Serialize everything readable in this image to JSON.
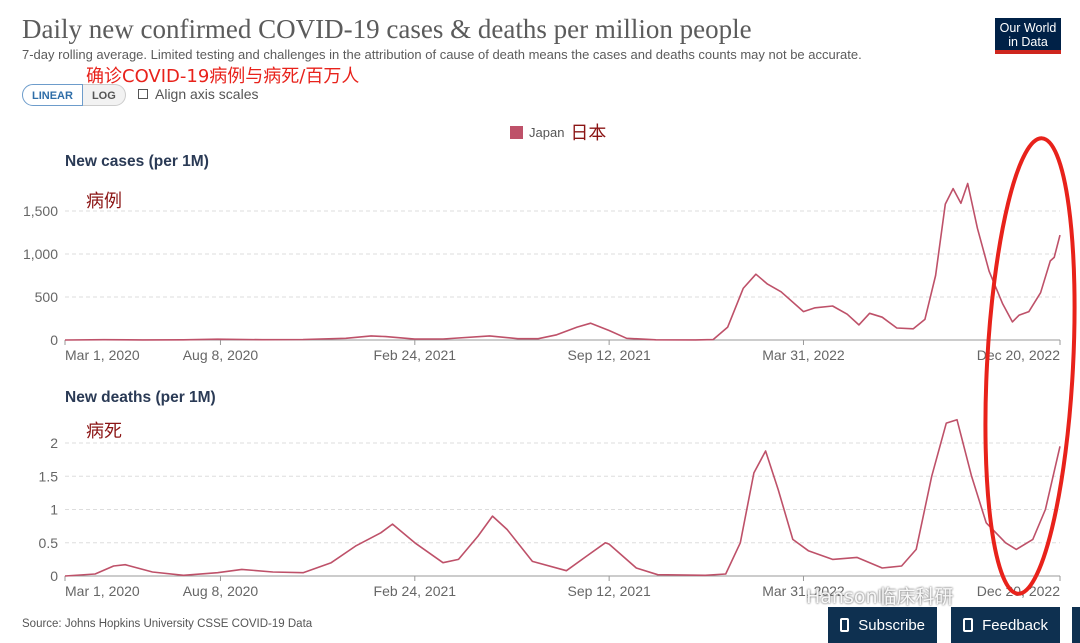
{
  "header": {
    "title": "Daily new confirmed COVID-19 cases & deaths per million people",
    "subtitle": "7-day rolling average. Limited testing and challenges in the attribution of cause of death means the cases and deaths counts may not be accurate.",
    "logo_line1": "Our World",
    "logo_line2": "in Data"
  },
  "annotations": {
    "title_cn": "确诊COVID-19病例与病死/百万人",
    "legend_cn": "日本",
    "cases_cn": "病例",
    "deaths_cn": "病死"
  },
  "controls": {
    "linear_label": "LINEAR",
    "log_label": "LOG",
    "align_label": "Align axis scales"
  },
  "legend": {
    "name": "Japan",
    "color": "#be5169"
  },
  "source": "Source: Johns Hopkins University CSSE COVID-19 Data",
  "buttons": {
    "subscribe": "Subscribe",
    "feedback": "Feedback"
  },
  "watermark": "Hanson临床科研",
  "highlight_color": "#e8221b",
  "chart_data": [
    {
      "type": "line",
      "title": "New cases (per 1M)",
      "x_type": "date",
      "xlim": [
        "2020-03-01",
        "2022-12-20"
      ],
      "ylim": [
        0,
        1800
      ],
      "y_ticks": [
        0,
        500,
        1000,
        1500
      ],
      "y_tick_labels": [
        "0",
        "500",
        "1,000",
        "1,500"
      ],
      "x_ticks": [
        "2020-03-01",
        "2020-08-08",
        "2021-02-24",
        "2021-09-12",
        "2022-03-31",
        "2022-12-20"
      ],
      "x_tick_labels": [
        "Mar 1, 2020",
        "Aug 8, 2020",
        "Feb 24, 2021",
        "Sep 12, 2021",
        "Mar 31, 2022",
        "Dec 20, 2022"
      ],
      "grid": "horizontal",
      "series": [
        {
          "name": "Japan",
          "color": "#be5169",
          "points": [
            [
              "2020-03-01",
              0
            ],
            [
              "2020-04-10",
              4
            ],
            [
              "2020-05-20",
              1
            ],
            [
              "2020-07-01",
              2
            ],
            [
              "2020-08-05",
              9
            ],
            [
              "2020-09-20",
              4
            ],
            [
              "2020-11-01",
              6
            ],
            [
              "2020-12-15",
              20
            ],
            [
              "2021-01-10",
              48
            ],
            [
              "2021-01-25",
              40
            ],
            [
              "2021-02-24",
              10
            ],
            [
              "2021-03-25",
              12
            ],
            [
              "2021-05-12",
              48
            ],
            [
              "2021-06-10",
              15
            ],
            [
              "2021-07-01",
              15
            ],
            [
              "2021-07-20",
              60
            ],
            [
              "2021-08-10",
              150
            ],
            [
              "2021-08-24",
              195
            ],
            [
              "2021-09-12",
              110
            ],
            [
              "2021-09-30",
              20
            ],
            [
              "2021-10-30",
              2
            ],
            [
              "2021-12-10",
              1
            ],
            [
              "2021-12-28",
              5
            ],
            [
              "2022-01-12",
              150
            ],
            [
              "2022-01-28",
              600
            ],
            [
              "2022-02-10",
              765
            ],
            [
              "2022-02-22",
              650
            ],
            [
              "2022-03-08",
              560
            ],
            [
              "2022-03-31",
              330
            ],
            [
              "2022-04-12",
              375
            ],
            [
              "2022-04-30",
              395
            ],
            [
              "2022-05-15",
              300
            ],
            [
              "2022-05-27",
              175
            ],
            [
              "2022-06-07",
              310
            ],
            [
              "2022-06-20",
              265
            ],
            [
              "2022-07-05",
              140
            ],
            [
              "2022-07-22",
              130
            ],
            [
              "2022-08-03",
              240
            ],
            [
              "2022-08-14",
              750
            ],
            [
              "2022-08-24",
              1580
            ],
            [
              "2022-09-01",
              1760
            ],
            [
              "2022-09-09",
              1590
            ],
            [
              "2022-09-16",
              1820
            ],
            [
              "2022-09-26",
              1300
            ],
            [
              "2022-10-08",
              800
            ],
            [
              "2022-10-22",
              420
            ],
            [
              "2022-11-01",
              210
            ],
            [
              "2022-11-08",
              290
            ],
            [
              "2022-11-18",
              330
            ],
            [
              "2022-11-30",
              550
            ],
            [
              "2022-12-10",
              920
            ],
            [
              "2022-12-14",
              960
            ],
            [
              "2022-12-20",
              1220
            ]
          ]
        }
      ]
    },
    {
      "type": "line",
      "title": "New deaths (per 1M)",
      "x_type": "date",
      "xlim": [
        "2020-03-01",
        "2022-12-20"
      ],
      "ylim": [
        0,
        2.4
      ],
      "y_ticks": [
        0,
        0.5,
        1,
        1.5,
        2
      ],
      "y_tick_labels": [
        "0",
        "0.5",
        "1",
        "1.5",
        "2"
      ],
      "x_ticks": [
        "2020-03-01",
        "2020-08-08",
        "2021-02-24",
        "2021-09-12",
        "2022-03-31",
        "2022-12-20"
      ],
      "x_tick_labels": [
        "Mar 1, 2020",
        "Aug 8, 2020",
        "Feb 24, 2021",
        "Sep 12, 2021",
        "Mar 31, 2022",
        "Dec 20, 2022"
      ],
      "grid": "horizontal",
      "series": [
        {
          "name": "Japan",
          "color": "#be5169",
          "points": [
            [
              "2020-03-01",
              0
            ],
            [
              "2020-04-01",
              0.03
            ],
            [
              "2020-04-20",
              0.15
            ],
            [
              "2020-05-02",
              0.17
            ],
            [
              "2020-05-30",
              0.06
            ],
            [
              "2020-07-01",
              0.01
            ],
            [
              "2020-08-05",
              0.05
            ],
            [
              "2020-08-30",
              0.1
            ],
            [
              "2020-10-01",
              0.06
            ],
            [
              "2020-11-01",
              0.05
            ],
            [
              "2020-11-30",
              0.2
            ],
            [
              "2020-12-25",
              0.45
            ],
            [
              "2021-01-20",
              0.65
            ],
            [
              "2021-02-01",
              0.78
            ],
            [
              "2021-02-24",
              0.5
            ],
            [
              "2021-03-25",
              0.2
            ],
            [
              "2021-04-10",
              0.25
            ],
            [
              "2021-04-30",
              0.6
            ],
            [
              "2021-05-15",
              0.9
            ],
            [
              "2021-05-30",
              0.7
            ],
            [
              "2021-06-25",
              0.22
            ],
            [
              "2021-07-30",
              0.08
            ],
            [
              "2021-08-20",
              0.3
            ],
            [
              "2021-09-08",
              0.5
            ],
            [
              "2021-09-12",
              0.48
            ],
            [
              "2021-10-10",
              0.12
            ],
            [
              "2021-11-01",
              0.02
            ],
            [
              "2021-12-20",
              0.01
            ],
            [
              "2022-01-10",
              0.03
            ],
            [
              "2022-01-25",
              0.5
            ],
            [
              "2022-02-08",
              1.55
            ],
            [
              "2022-02-20",
              1.88
            ],
            [
              "2022-03-05",
              1.3
            ],
            [
              "2022-03-20",
              0.55
            ],
            [
              "2022-04-05",
              0.38
            ],
            [
              "2022-04-30",
              0.25
            ],
            [
              "2022-05-25",
              0.28
            ],
            [
              "2022-06-20",
              0.12
            ],
            [
              "2022-07-10",
              0.15
            ],
            [
              "2022-07-25",
              0.4
            ],
            [
              "2022-08-10",
              1.5
            ],
            [
              "2022-08-25",
              2.3
            ],
            [
              "2022-09-05",
              2.35
            ],
            [
              "2022-09-20",
              1.5
            ],
            [
              "2022-10-05",
              0.8
            ],
            [
              "2022-10-25",
              0.5
            ],
            [
              "2022-11-05",
              0.4
            ],
            [
              "2022-11-22",
              0.55
            ],
            [
              "2022-12-05",
              1.0
            ],
            [
              "2022-12-20",
              1.95
            ]
          ]
        }
      ]
    }
  ]
}
